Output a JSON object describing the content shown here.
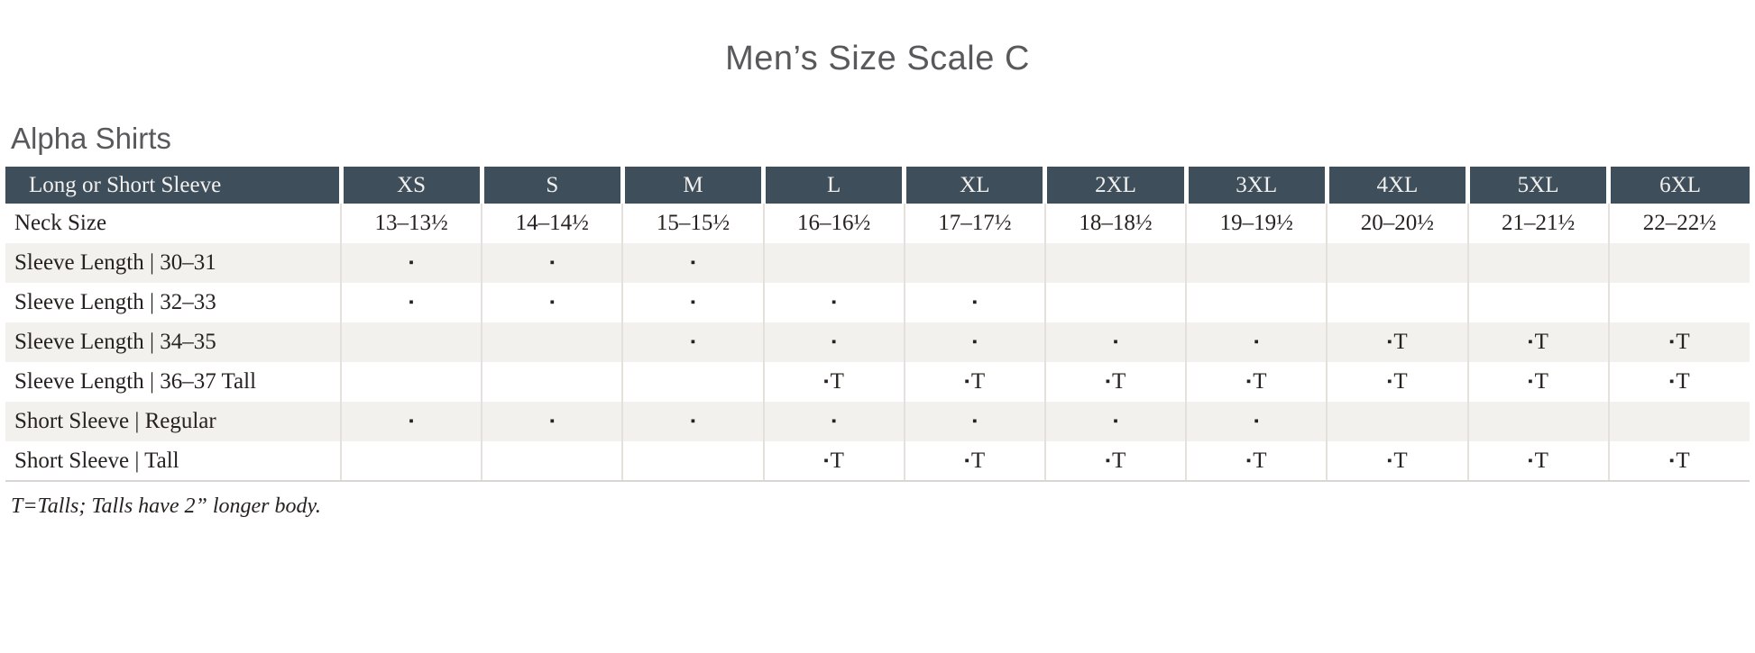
{
  "page": {
    "title": "Men’s Size Scale C",
    "section_title": "Alpha Shirts",
    "footnote": "T=Talls; Talls have 2” longer body."
  },
  "legend": {
    "dot_glyph": "▪",
    "tall_glyph": "T"
  },
  "colors": {
    "header_bg": "#3e4e5a",
    "header_text": "#f2f1ef",
    "title_text": "#58595b",
    "body_text": "#26221f",
    "alt_row_bg": "#f2f1ee",
    "grid_line": "#e4e1dd",
    "bottom_line": "#d9d6d2"
  },
  "chart_data": {
    "type": "table",
    "title": "Men’s Size Scale C — Alpha Shirts",
    "header": [
      "Long or Short Sleeve",
      "XS",
      "S",
      "M",
      "L",
      "XL",
      "2XL",
      "3XL",
      "4XL",
      "5XL",
      "6XL"
    ],
    "rows": [
      {
        "label": "Neck Size",
        "cells": [
          "13–13½",
          "14–14½",
          "15–15½",
          "16–16½",
          "17–17½",
          "18–18½",
          "19–19½",
          "20–20½",
          "21–21½",
          "22–22½"
        ]
      },
      {
        "label": "Sleeve Length  |  30–31",
        "cells": [
          "dot",
          "dot",
          "dot",
          "",
          "",
          "",
          "",
          "",
          "",
          ""
        ]
      },
      {
        "label": "Sleeve Length  |  32–33",
        "cells": [
          "dot",
          "dot",
          "dot",
          "dot",
          "dot",
          "",
          "",
          "",
          "",
          ""
        ]
      },
      {
        "label": "Sleeve Length  |  34–35",
        "cells": [
          "",
          "",
          "dot",
          "dot",
          "dot",
          "dot",
          "dot",
          "dotT",
          "dotT",
          "dotT"
        ]
      },
      {
        "label": "Sleeve Length  |  36–37 Tall",
        "cells": [
          "",
          "",
          "",
          "dotT",
          "dotT",
          "dotT",
          "dotT",
          "dotT",
          "dotT",
          "dotT"
        ]
      },
      {
        "label": "Short Sleeve  |  Regular",
        "cells": [
          "dot",
          "dot",
          "dot",
          "dot",
          "dot",
          "dot",
          "dot",
          "",
          "",
          ""
        ]
      },
      {
        "label": "Short Sleeve  |  Tall",
        "cells": [
          "",
          "",
          "",
          "dotT",
          "dotT",
          "dotT",
          "dotT",
          "dotT",
          "dotT",
          "dotT"
        ]
      }
    ]
  }
}
